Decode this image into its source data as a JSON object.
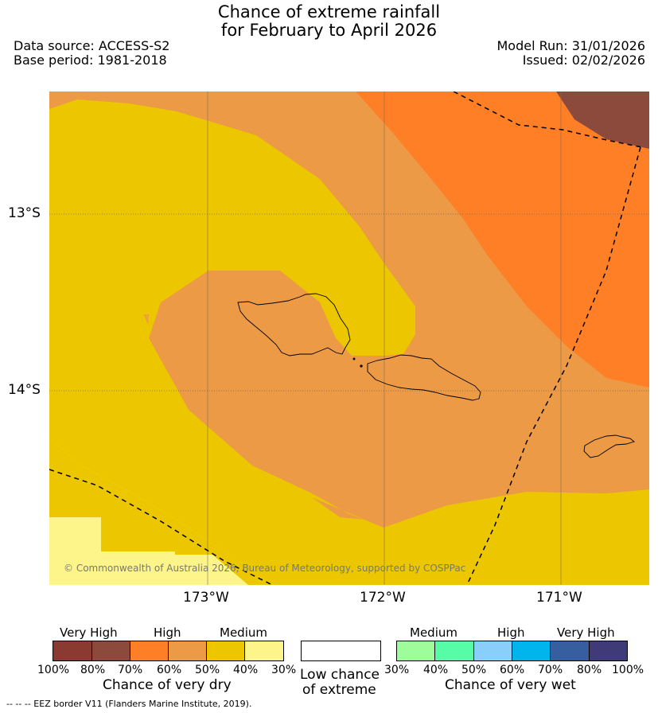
{
  "title": {
    "line1": "Chance of extreme rainfall",
    "line2": "for February to April 2026"
  },
  "meta": {
    "data_source": "Data source: ACCESS-S2",
    "base_period": "Base period: 1981-2018",
    "model_run": "Model Run: 31/01/2026",
    "issued": "Issued: 02/02/2026"
  },
  "map": {
    "lat_labels": [
      "13°S",
      "14°S"
    ],
    "lon_labels": [
      "173°W",
      "172°W",
      "171°W"
    ],
    "copyright": "© Commonwealth of Australia 2026, Bureau of Meteorology, supported by COSPPac"
  },
  "colors": {
    "dry_very_high_1": "#8B3A32",
    "dry_very_high_2": "#8B4A3C",
    "dry_high_1": "#FE7F26",
    "dry_high_2": "#EC9A46",
    "dry_medium_1": "#ECC700",
    "dry_medium_2": "#FDF589",
    "low": "#FFFFFF",
    "wet_medium_1": "#9EFD9A",
    "wet_medium_2": "#56FDA6",
    "wet_high_1": "#8ACEFC",
    "wet_high_2": "#00B4EE",
    "wet_very_high_1": "#375E9E",
    "wet_very_high_2": "#3E3B78"
  },
  "legend": {
    "dry": {
      "very_high": "Very High",
      "high": "High",
      "medium": "Medium",
      "ticks": [
        "100%",
        "80%",
        "70%",
        "60%",
        "50%",
        "40%",
        "30%"
      ],
      "caption": "Chance of very dry"
    },
    "low": {
      "line1": "Low chance",
      "line2": "of extreme"
    },
    "wet": {
      "medium": "Medium",
      "high": "High",
      "very_high": "Very High",
      "ticks": [
        "30%",
        "40%",
        "50%",
        "60%",
        "70%",
        "80%",
        "100%"
      ],
      "caption": "Chance of very wet"
    }
  },
  "footnote": "--  --  -- EEZ border V11 (Flanders Marine Institute, 2019)."
}
